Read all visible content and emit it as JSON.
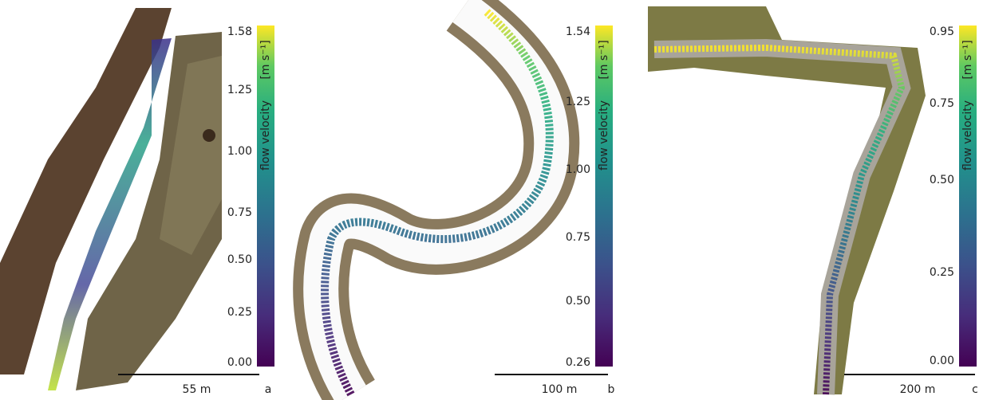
{
  "panels": [
    {
      "letter": "a",
      "scale_bar": "55 m",
      "colorbar_label": "flow velocity",
      "colorbar_unit": "[m s⁻¹]",
      "ticks": [
        "1.58",
        "1.25",
        "1.00",
        "0.75",
        "0.50",
        "0.25",
        "0.00"
      ]
    },
    {
      "letter": "b",
      "scale_bar": "100 m",
      "colorbar_label": "flow velocity",
      "colorbar_unit": "[m s⁻¹]",
      "ticks": [
        "1.54",
        "1.25",
        "1.00",
        "0.75",
        "0.50",
        "0.26"
      ]
    },
    {
      "letter": "c",
      "scale_bar": "200 m",
      "colorbar_label": "flow velocity",
      "colorbar_unit": "[m s⁻¹]",
      "ticks": [
        "0.95",
        "0.75",
        "0.50",
        "0.25",
        "0.00"
      ]
    }
  ]
}
